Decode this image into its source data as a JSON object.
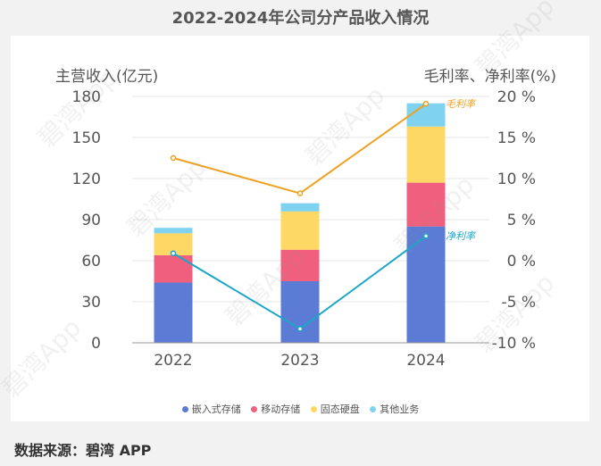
{
  "chart_data": {
    "type": "bar+line",
    "title": "2022-2024年公司分产品收入情况",
    "categories": [
      "2022",
      "2023",
      "2024"
    ],
    "left_axis": {
      "label": "主营收入(亿元)",
      "range": [
        0,
        180
      ],
      "ticks": [
        "0",
        "30",
        "60",
        "90",
        "120",
        "150",
        "180"
      ]
    },
    "right_axis": {
      "label": "毛利率、净利率(%)",
      "range": [
        -10,
        20
      ],
      "ticks": [
        "-10 %",
        "-5 %",
        "0 %",
        "5 %",
        "10 %",
        "15 %",
        "20 %"
      ]
    },
    "series": [
      {
        "name": "嵌入式存储",
        "type": "bar",
        "color": "#5b7bd5",
        "values": [
          44,
          45,
          85
        ]
      },
      {
        "name": "移动存储",
        "type": "bar",
        "color": "#f0607e",
        "values": [
          20,
          23,
          32
        ]
      },
      {
        "name": "固态硬盘",
        "type": "bar",
        "color": "#fdd865",
        "values": [
          16,
          28,
          41
        ]
      },
      {
        "name": "其他业务",
        "type": "bar",
        "color": "#7fd3f0",
        "values": [
          4,
          6,
          17
        ]
      },
      {
        "name": "毛利率",
        "type": "line",
        "color": "#f0a020",
        "values": [
          12.5,
          8.2,
          19.1
        ]
      },
      {
        "name": "净利率",
        "type": "line",
        "color": "#1aa6c8",
        "values": [
          0.9,
          -8.3,
          3.0
        ]
      }
    ],
    "legend_position": "bottom"
  },
  "line_labels": {
    "gross": "毛利率",
    "net": "净利率"
  },
  "source": "数据来源：碧湾 APP",
  "watermark": "碧湾App"
}
